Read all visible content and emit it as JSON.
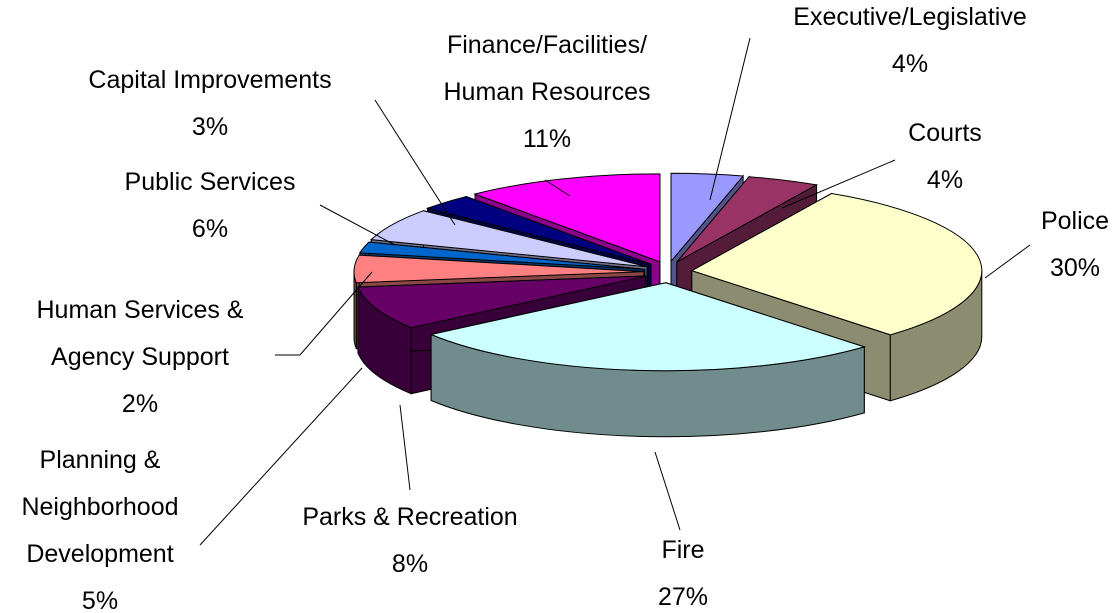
{
  "chart_data": {
    "type": "pie3d",
    "categories": [
      "Executive/Legislative",
      "Courts",
      "Police",
      "Fire",
      "Parks & Recreation",
      "Planning & Neighborhood Development",
      "Human Services & Agency Support",
      "Public Services",
      "Capital Improvements",
      "Finance/Facilities/ Human Resources"
    ],
    "values": [
      4,
      4,
      30,
      27,
      8,
      5,
      2,
      6,
      3,
      11
    ],
    "value_labels": [
      "4%",
      "4%",
      "30%",
      "27%",
      "8%",
      "5%",
      "2%",
      "6%",
      "3%",
      "11%"
    ],
    "colors": [
      "#9999ff",
      "#993366",
      "#ffffcc",
      "#ccffff",
      "#660066",
      "#ff8080",
      "#0066cc",
      "#ccccff",
      "#000080",
      "#ff00ff"
    ]
  }
}
